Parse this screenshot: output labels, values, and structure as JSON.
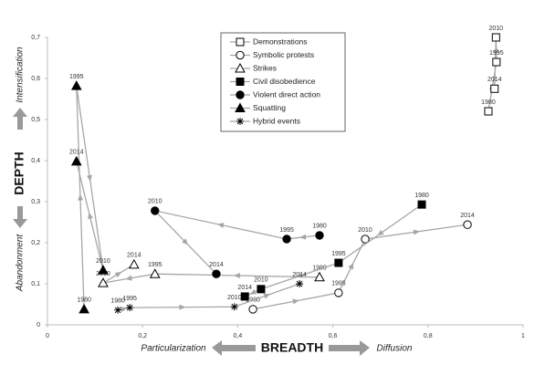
{
  "chart_data": {
    "type": "connected-scatter",
    "xlim": [
      0,
      1
    ],
    "xticks": [
      0,
      {
        "value": 0.2,
        "label": "0,2"
      },
      {
        "value": 0.4,
        "label": "0,4"
      },
      {
        "value": 0.6,
        "label": "0,6"
      },
      {
        "value": 0.8,
        "label": "0,8"
      },
      1
    ],
    "ylim": [
      0,
      0.7
    ],
    "yticks": [
      0,
      {
        "value": 0.1,
        "label": "0,1"
      },
      {
        "value": 0.2,
        "label": "0,2"
      },
      {
        "value": 0.3,
        "label": "0,3"
      },
      {
        "value": 0.4,
        "label": "0,4"
      },
      {
        "value": 0.5,
        "label": "0,5"
      },
      {
        "value": 0.6,
        "label": "0,6"
      },
      {
        "value": 0.7,
        "label": "0,7"
      }
    ],
    "x_label": "BREADTH",
    "y_label": "DEPTH",
    "x_low_label": "Particularization",
    "x_high_label": "Diffusion",
    "y_low_label": "Abandonment",
    "y_high_label": "Intensification",
    "line_color": "#a6a6a6",
    "marker_color": "#000000",
    "series": [
      {
        "name": "Demonstrations",
        "marker": "square-open",
        "point_labels": [
          "1980",
          "1995",
          "2010",
          "2014"
        ],
        "x": [
          0.927,
          0.944,
          0.943,
          0.94
        ],
        "y": [
          0.52,
          0.64,
          0.7,
          0.575
        ]
      },
      {
        "name": "Symbolic protests",
        "marker": "circle-open",
        "point_labels": [
          "1980",
          "1995",
          "2010",
          "2014"
        ],
        "x": [
          0.432,
          0.612,
          0.668,
          0.883
        ],
        "y": [
          0.038,
          0.078,
          0.209,
          0.244
        ]
      },
      {
        "name": "Strikes",
        "marker": "triangle-open",
        "point_labels": [
          "1980",
          "1995",
          "2010",
          "2014"
        ],
        "x": [
          0.572,
          0.226,
          0.117,
          0.182
        ],
        "y": [
          0.116,
          0.124,
          0.102,
          0.147
        ]
      },
      {
        "name": "Civil disobedience",
        "marker": "square",
        "point_labels": [
          "1980",
          "1995",
          "2010",
          "2014"
        ],
        "x": [
          0.787,
          0.612,
          0.449,
          0.415
        ],
        "y": [
          0.293,
          0.151,
          0.087,
          0.069
        ]
      },
      {
        "name": "Violent direct action",
        "marker": "circle",
        "point_labels": [
          "1980",
          "1995",
          "2010",
          "2014"
        ],
        "x": [
          0.572,
          0.503,
          0.226,
          0.355
        ],
        "y": [
          0.218,
          0.209,
          0.278,
          0.124
        ]
      },
      {
        "name": "Squatting",
        "marker": "triangle",
        "point_labels": [
          "1980",
          "1995",
          "2010",
          "2014"
        ],
        "x": [
          0.077,
          0.061,
          0.117,
          0.061
        ],
        "y": [
          0.038,
          0.582,
          0.133,
          0.398
        ]
      },
      {
        "name": "Hybrid events",
        "marker": "asterisk",
        "point_labels": [
          "1980",
          "1995",
          "2010",
          "2014"
        ],
        "x": [
          0.148,
          0.173,
          0.393,
          0.53
        ],
        "y": [
          0.036,
          0.042,
          0.044,
          0.1
        ]
      }
    ]
  }
}
